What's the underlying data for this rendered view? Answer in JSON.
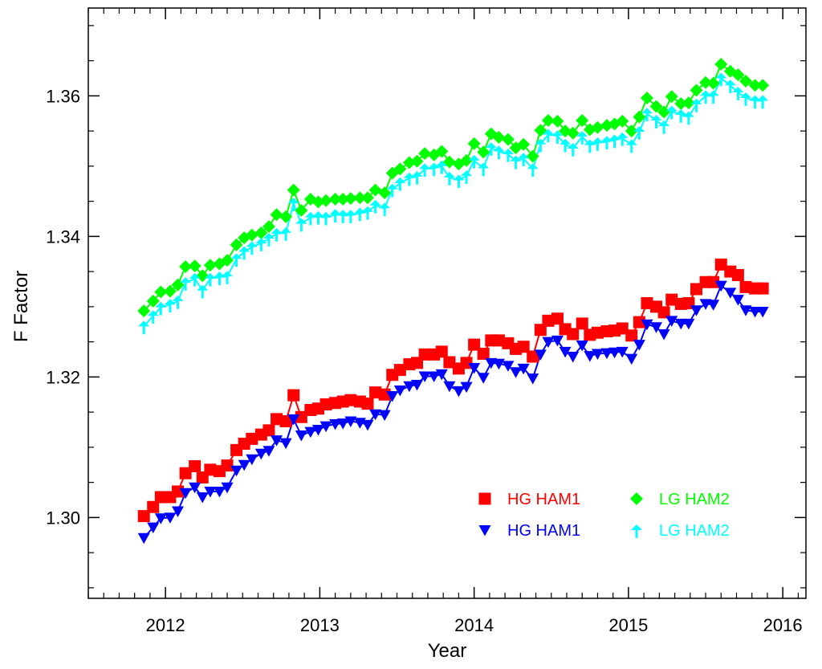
{
  "chart_data": {
    "type": "line",
    "title": "",
    "xlabel": "Year",
    "ylabel": "F Factor",
    "xlim": [
      2011.5,
      2016.15
    ],
    "ylim": [
      1.2885,
      1.3725
    ],
    "x_ticks": [
      2012,
      2013,
      2014,
      2015,
      2016
    ],
    "x_tick_labels": [
      "2012",
      "2013",
      "2014",
      "2015",
      "2016"
    ],
    "y_ticks": [
      1.3,
      1.32,
      1.34,
      1.36
    ],
    "y_tick_labels": [
      "1.30",
      "1.32",
      "1.34",
      "1.36"
    ],
    "grid": false,
    "legend_position": "lower-right",
    "x": [
      2011.86,
      2011.92,
      2011.97,
      2012.03,
      2012.08,
      2012.13,
      2012.19,
      2012.24,
      2012.29,
      2012.35,
      2012.4,
      2012.46,
      2012.51,
      2012.56,
      2012.62,
      2012.67,
      2012.72,
      2012.78,
      2012.83,
      2012.88,
      2012.94,
      2012.99,
      2013.04,
      2013.1,
      2013.15,
      2013.2,
      2013.26,
      2013.31,
      2013.36,
      2013.42,
      2013.47,
      2013.52,
      2013.58,
      2013.63,
      2013.68,
      2013.74,
      2013.79,
      2013.84,
      2013.9,
      2013.95,
      2014.0,
      2014.06,
      2014.11,
      2014.16,
      2014.22,
      2014.27,
      2014.32,
      2014.38,
      2014.43,
      2014.48,
      2014.54,
      2014.59,
      2014.64,
      2014.7,
      2014.75,
      2014.8,
      2014.86,
      2014.91,
      2014.96,
      2015.02,
      2015.07,
      2015.12,
      2015.18,
      2015.23,
      2015.28,
      2015.34,
      2015.39,
      2015.44,
      2015.5,
      2015.55,
      2015.6,
      2015.66,
      2015.71,
      2015.76,
      2015.82,
      2015.87
    ],
    "series": [
      {
        "name": "HG HAM1",
        "color": "#ff0000",
        "marker": "square",
        "values": [
          1.3002,
          1.3015,
          1.3029,
          1.3029,
          1.3037,
          1.3063,
          1.3073,
          1.3057,
          1.3068,
          1.3066,
          1.3074,
          1.3096,
          1.3105,
          1.3112,
          1.3118,
          1.3124,
          1.314,
          1.3137,
          1.3174,
          1.3143,
          1.3153,
          1.3155,
          1.3161,
          1.3163,
          1.3165,
          1.3167,
          1.3165,
          1.3162,
          1.3178,
          1.3175,
          1.3203,
          1.321,
          1.3218,
          1.322,
          1.3232,
          1.3232,
          1.3236,
          1.3221,
          1.3212,
          1.322,
          1.3246,
          1.3233,
          1.3252,
          1.3252,
          1.3248,
          1.324,
          1.3243,
          1.3229,
          1.3267,
          1.328,
          1.3283,
          1.3268,
          1.3261,
          1.3276,
          1.326,
          1.3263,
          1.3265,
          1.3266,
          1.3269,
          1.3259,
          1.3278,
          1.3305,
          1.33,
          1.3292,
          1.331,
          1.3304,
          1.3305,
          1.3325,
          1.3335,
          1.3335,
          1.336,
          1.335,
          1.3345,
          1.3328,
          1.3326,
          1.3326
        ]
      },
      {
        "name": "HG HAM1",
        "color": "#0000ff",
        "marker": "triangle-down",
        "values": [
          1.2971,
          1.2986,
          1.2999,
          1.3,
          1.3009,
          1.3035,
          1.3043,
          1.3029,
          1.3037,
          1.3037,
          1.3043,
          1.3067,
          1.3075,
          1.3083,
          1.3091,
          1.3095,
          1.311,
          1.3106,
          1.314,
          1.3117,
          1.3122,
          1.3125,
          1.313,
          1.3133,
          1.3134,
          1.3137,
          1.3135,
          1.3132,
          1.3147,
          1.3146,
          1.3173,
          1.3181,
          1.3187,
          1.3189,
          1.3201,
          1.3201,
          1.3204,
          1.3187,
          1.318,
          1.3186,
          1.3213,
          1.3199,
          1.322,
          1.3219,
          1.3216,
          1.3207,
          1.3212,
          1.3198,
          1.3232,
          1.325,
          1.3252,
          1.3236,
          1.3229,
          1.3245,
          1.323,
          1.3233,
          1.3234,
          1.3235,
          1.3236,
          1.3226,
          1.3246,
          1.3275,
          1.3271,
          1.3261,
          1.328,
          1.3276,
          1.3276,
          1.3295,
          1.3304,
          1.3303,
          1.333,
          1.332,
          1.331,
          1.3295,
          1.3293,
          1.3293
        ]
      },
      {
        "name": "LG HAM2",
        "color": "#00ff00",
        "marker": "diamond",
        "values": [
          1.3294,
          1.3308,
          1.3321,
          1.3322,
          1.3331,
          1.3357,
          1.3358,
          1.3344,
          1.3359,
          1.3361,
          1.3366,
          1.3388,
          1.3398,
          1.3402,
          1.3405,
          1.3414,
          1.3431,
          1.3428,
          1.3466,
          1.3437,
          1.3453,
          1.3449,
          1.3451,
          1.3453,
          1.3453,
          1.3454,
          1.3455,
          1.3455,
          1.3466,
          1.3462,
          1.349,
          1.3496,
          1.3505,
          1.3507,
          1.3518,
          1.3516,
          1.3521,
          1.3506,
          1.3503,
          1.3508,
          1.3532,
          1.352,
          1.3546,
          1.3541,
          1.3538,
          1.3526,
          1.3531,
          1.3514,
          1.3551,
          1.3565,
          1.3564,
          1.355,
          1.3547,
          1.3565,
          1.3552,
          1.3555,
          1.3558,
          1.356,
          1.3564,
          1.355,
          1.357,
          1.3597,
          1.3585,
          1.3577,
          1.3599,
          1.3589,
          1.359,
          1.3608,
          1.3619,
          1.3618,
          1.3645,
          1.3635,
          1.363,
          1.3621,
          1.3615,
          1.3615
        ]
      },
      {
        "name": "LG HAM2",
        "color": "#00ffff",
        "marker": "arrow-up",
        "values": [
          1.3272,
          1.3287,
          1.3299,
          1.3303,
          1.3308,
          1.3334,
          1.334,
          1.3323,
          1.334,
          1.3342,
          1.3343,
          1.3368,
          1.3378,
          1.3385,
          1.339,
          1.3397,
          1.3404,
          1.3405,
          1.3447,
          1.3418,
          1.3427,
          1.3428,
          1.3427,
          1.3431,
          1.343,
          1.343,
          1.3433,
          1.3435,
          1.3444,
          1.344,
          1.3467,
          1.3476,
          1.3483,
          1.3485,
          1.3496,
          1.3497,
          1.35,
          1.3484,
          1.348,
          1.3486,
          1.3508,
          1.3497,
          1.3526,
          1.3521,
          1.3517,
          1.3507,
          1.3511,
          1.3496,
          1.3531,
          1.3545,
          1.3543,
          1.3531,
          1.3525,
          1.3542,
          1.353,
          1.3533,
          1.3535,
          1.3537,
          1.354,
          1.353,
          1.3549,
          1.3575,
          1.3565,
          1.3557,
          1.3578,
          1.3573,
          1.357,
          1.3588,
          1.36,
          1.36,
          1.3625,
          1.3615,
          1.3605,
          1.3597,
          1.3593,
          1.3593
        ]
      }
    ]
  }
}
